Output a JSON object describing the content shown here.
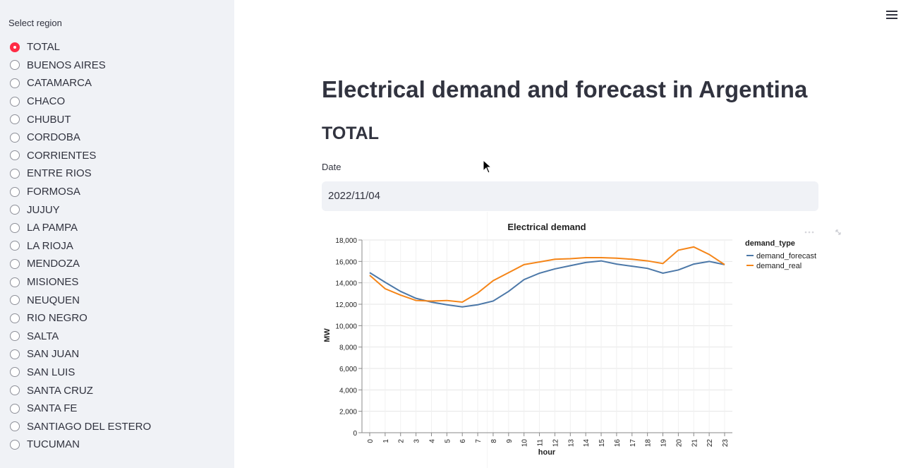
{
  "sidebar": {
    "label": "Select region",
    "selected": "TOTAL",
    "options": [
      "TOTAL",
      "BUENOS AIRES",
      "CATAMARCA",
      "CHACO",
      "CHUBUT",
      "CORDOBA",
      "CORRIENTES",
      "ENTRE RIOS",
      "FORMOSA",
      "JUJUY",
      "LA PAMPA",
      "LA RIOJA",
      "MENDOZA",
      "MISIONES",
      "NEUQUEN",
      "RIO NEGRO",
      "SALTA",
      "SAN JUAN",
      "SAN LUIS",
      "SANTA CRUZ",
      "SANTA FE",
      "SANTIAGO DEL ESTERO",
      "TUCUMAN"
    ],
    "accent_color": "#ff2b45"
  },
  "header": {
    "menu_icon": "hamburger-icon"
  },
  "main": {
    "title": "Electrical demand and forecast in Argentina",
    "subtitle": "TOTAL",
    "date_label": "Date",
    "date_value": "2022/11/04"
  },
  "chart_data": {
    "type": "line",
    "title": "Electrical demand",
    "xlabel": "hour",
    "ylabel": "MW",
    "ylim": [
      0,
      18000
    ],
    "yticks": [
      0,
      2000,
      4000,
      6000,
      8000,
      10000,
      12000,
      14000,
      16000,
      18000
    ],
    "x": [
      0,
      1,
      2,
      3,
      4,
      5,
      6,
      7,
      8,
      9,
      10,
      11,
      12,
      13,
      14,
      15,
      16,
      17,
      18,
      19,
      20,
      21,
      22,
      23
    ],
    "legend_title": "demand_type",
    "legend_position": "right",
    "grid": true,
    "series": [
      {
        "name": "demand_forecast",
        "color": "#4c78a8",
        "values": [
          14950,
          14050,
          13200,
          12550,
          12200,
          11950,
          11750,
          11950,
          12300,
          13200,
          14300,
          14900,
          15300,
          15600,
          15900,
          16050,
          15750,
          15550,
          15350,
          14900,
          15200,
          15750,
          16000,
          15700
        ]
      },
      {
        "name": "demand_real",
        "color": "#f58518",
        "values": [
          14700,
          13450,
          12850,
          12350,
          12300,
          12350,
          12200,
          13050,
          14200,
          14950,
          15700,
          15950,
          16200,
          16250,
          16350,
          16350,
          16300,
          16200,
          16050,
          15800,
          17050,
          17350,
          16650,
          15700
        ]
      }
    ]
  }
}
